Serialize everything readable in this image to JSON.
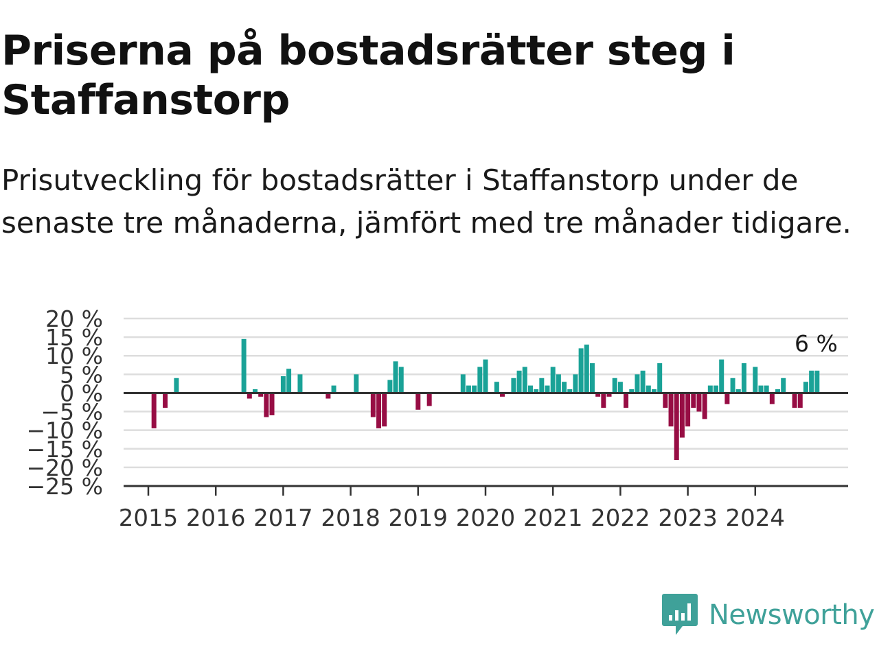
{
  "title": "Priserna på bostadsrätter steg i Staffanstorp",
  "subtitle": "Prisutveckling för bostadsrätter i Staffanstorp under de senaste tre månaderna, jämfört med tre månader tidigare.",
  "brand": {
    "name": "Newsworthy",
    "logo_icon": "bar-chart-speech-bubble-icon"
  },
  "colors": {
    "positive": "#1aa297",
    "negative": "#970d44",
    "grid": "#dddddd",
    "zero_line": "#333333",
    "brand": "#3fa199"
  },
  "chart_data": {
    "type": "bar",
    "title": "Priserna på bostadsrätter steg i Staffanstorp",
    "subtitle": "Prisutveckling för bostadsrätter i Staffanstorp under de senaste tre månaderna, jämfört med tre månader tidigare.",
    "xlabel": "",
    "ylabel": "",
    "start": "2015-01",
    "frequency": "monthly",
    "ylim": [
      -25,
      20
    ],
    "yticks": [
      20,
      15,
      10,
      5,
      0,
      -5,
      -10,
      -15,
      -20,
      -25
    ],
    "ytick_labels": [
      "20 %",
      "15 %",
      "10 %",
      "5 %",
      "0 %",
      "−5 %",
      "−10 %",
      "−15 %",
      "−20 %",
      "−25 %"
    ],
    "xticks": [
      "2015",
      "2016",
      "2017",
      "2018",
      "2019",
      "2020",
      "2021",
      "2022",
      "2023",
      "2024"
    ],
    "grid": true,
    "values": [
      null,
      -9.5,
      null,
      -4,
      null,
      4,
      null,
      null,
      null,
      null,
      null,
      null,
      null,
      null,
      null,
      null,
      null,
      14.5,
      -1.5,
      1,
      -1,
      -6.5,
      -6,
      null,
      4.5,
      6.5,
      null,
      5,
      null,
      null,
      null,
      null,
      -1.5,
      2,
      null,
      null,
      null,
      5,
      null,
      null,
      -6.5,
      -9.5,
      -9,
      3.5,
      8.5,
      7,
      null,
      null,
      -4.5,
      null,
      -3.5,
      null,
      null,
      null,
      null,
      null,
      5,
      2,
      2,
      7,
      9,
      null,
      3,
      -1,
      null,
      4,
      6,
      7,
      2,
      1,
      4,
      2,
      7,
      5,
      3,
      1,
      5,
      12,
      13,
      8,
      -1,
      -4,
      -1,
      4,
      3,
      -4,
      1,
      5,
      6,
      2,
      1,
      8,
      -4,
      -9,
      -18,
      -12,
      -9,
      -4,
      -5,
      -7,
      2,
      2,
      9,
      -3,
      4,
      1,
      8,
      null,
      7,
      2,
      2,
      -3,
      1,
      4,
      null,
      -4,
      -4,
      3,
      6,
      6
    ],
    "last_value_label": "6 %"
  }
}
